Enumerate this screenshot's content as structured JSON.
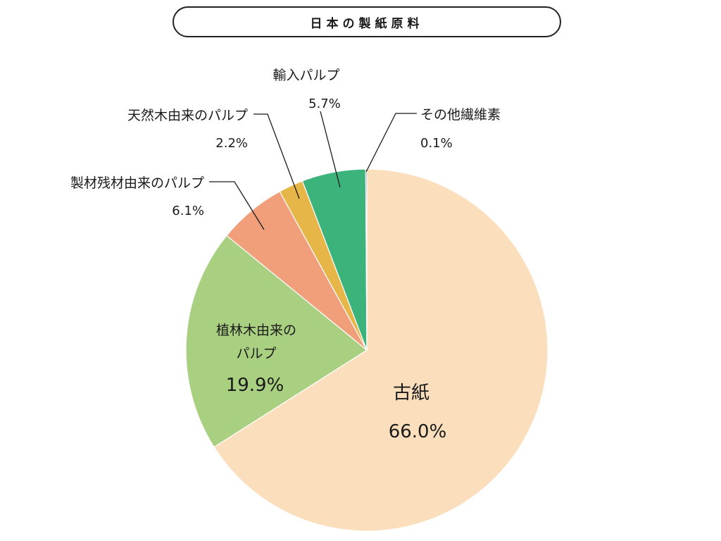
{
  "chart_data": {
    "type": "pie",
    "title": "日本の製紙原料",
    "slices": [
      {
        "label": "古紙",
        "value": 66.0,
        "value_label": "66.0%",
        "color": "#fbdfbd"
      },
      {
        "label": "植林木由来のパルプ",
        "label_lines": [
          "植林木由来の",
          "パルプ"
        ],
        "value": 19.9,
        "value_label": "19.9%",
        "color": "#a9d081"
      },
      {
        "label": "製材残材由来のパルプ",
        "value": 6.1,
        "value_label": "6.1%",
        "color": "#f19e7b"
      },
      {
        "label": "天然木由来のパルプ",
        "value": 2.2,
        "value_label": "2.2%",
        "color": "#e6b649"
      },
      {
        "label": "輸入パルプ",
        "value": 5.7,
        "value_label": "5.7%",
        "color": "#3db37c"
      },
      {
        "label": "その他繊維素",
        "value": 0.1,
        "value_label": "0.1%",
        "color": "#2f4f4f"
      }
    ]
  }
}
